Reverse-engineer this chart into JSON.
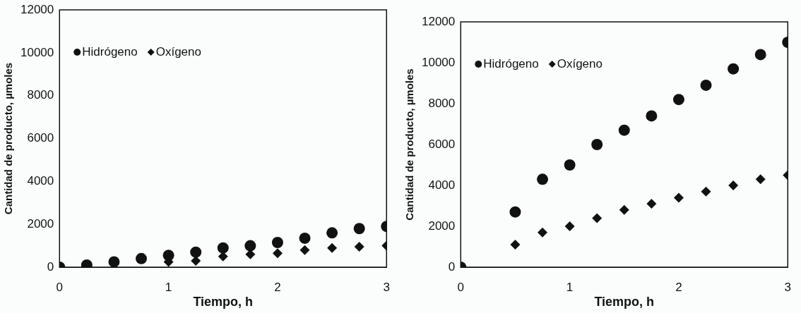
{
  "chart_data": [
    {
      "type": "scatter",
      "xlabel": "Tiempo, h",
      "ylabel": "Cantidad de producto, µmoles",
      "x": [
        0,
        0.25,
        0.5,
        0.75,
        1,
        1.25,
        1.5,
        1.75,
        2,
        2.25,
        2.5,
        2.75,
        3
      ],
      "xlim": [
        0,
        3
      ],
      "xticks": [
        0,
        1,
        2,
        3
      ],
      "ylim": [
        0,
        12000
      ],
      "yticks": [
        0,
        2000,
        4000,
        6000,
        8000,
        10000,
        12000
      ],
      "grid": false,
      "legend": "top left",
      "series": [
        {
          "name": "Hidrógeno",
          "color": "#111111",
          "marker": "circle",
          "values": [
            0,
            100,
            250,
            400,
            550,
            700,
            900,
            1000,
            1150,
            1350,
            1600,
            1800,
            1900
          ]
        },
        {
          "name": "Oxígeno",
          "color": "#111111",
          "marker": "diamond",
          "values": [
            null,
            null,
            null,
            null,
            250,
            300,
            500,
            600,
            650,
            800,
            900,
            950,
            1000
          ]
        }
      ]
    },
    {
      "type": "scatter",
      "xlabel": "Tiempo, h",
      "ylabel": "Cantidad de producto, µmoles",
      "x": [
        0,
        0.5,
        0.75,
        1,
        1.25,
        1.5,
        1.75,
        2,
        2.25,
        2.5,
        2.75,
        3
      ],
      "xlim": [
        0,
        3
      ],
      "xticks": [
        0,
        1,
        2,
        3
      ],
      "ylim": [
        0,
        12000
      ],
      "yticks": [
        0,
        2000,
        4000,
        6000,
        8000,
        10000,
        12000
      ],
      "grid": false,
      "legend": "top left",
      "series": [
        {
          "name": "Hidrógeno",
          "color": "#111111",
          "marker": "circle",
          "values": [
            0,
            2700,
            4300,
            5000,
            6000,
            6700,
            7400,
            8200,
            8900,
            9700,
            10400,
            11000
          ]
        },
        {
          "name": "Oxígeno",
          "color": "#111111",
          "marker": "diamond",
          "values": [
            null,
            1100,
            1700,
            2000,
            2400,
            2800,
            3100,
            3400,
            3700,
            4000,
            4300,
            4500
          ]
        }
      ]
    }
  ]
}
